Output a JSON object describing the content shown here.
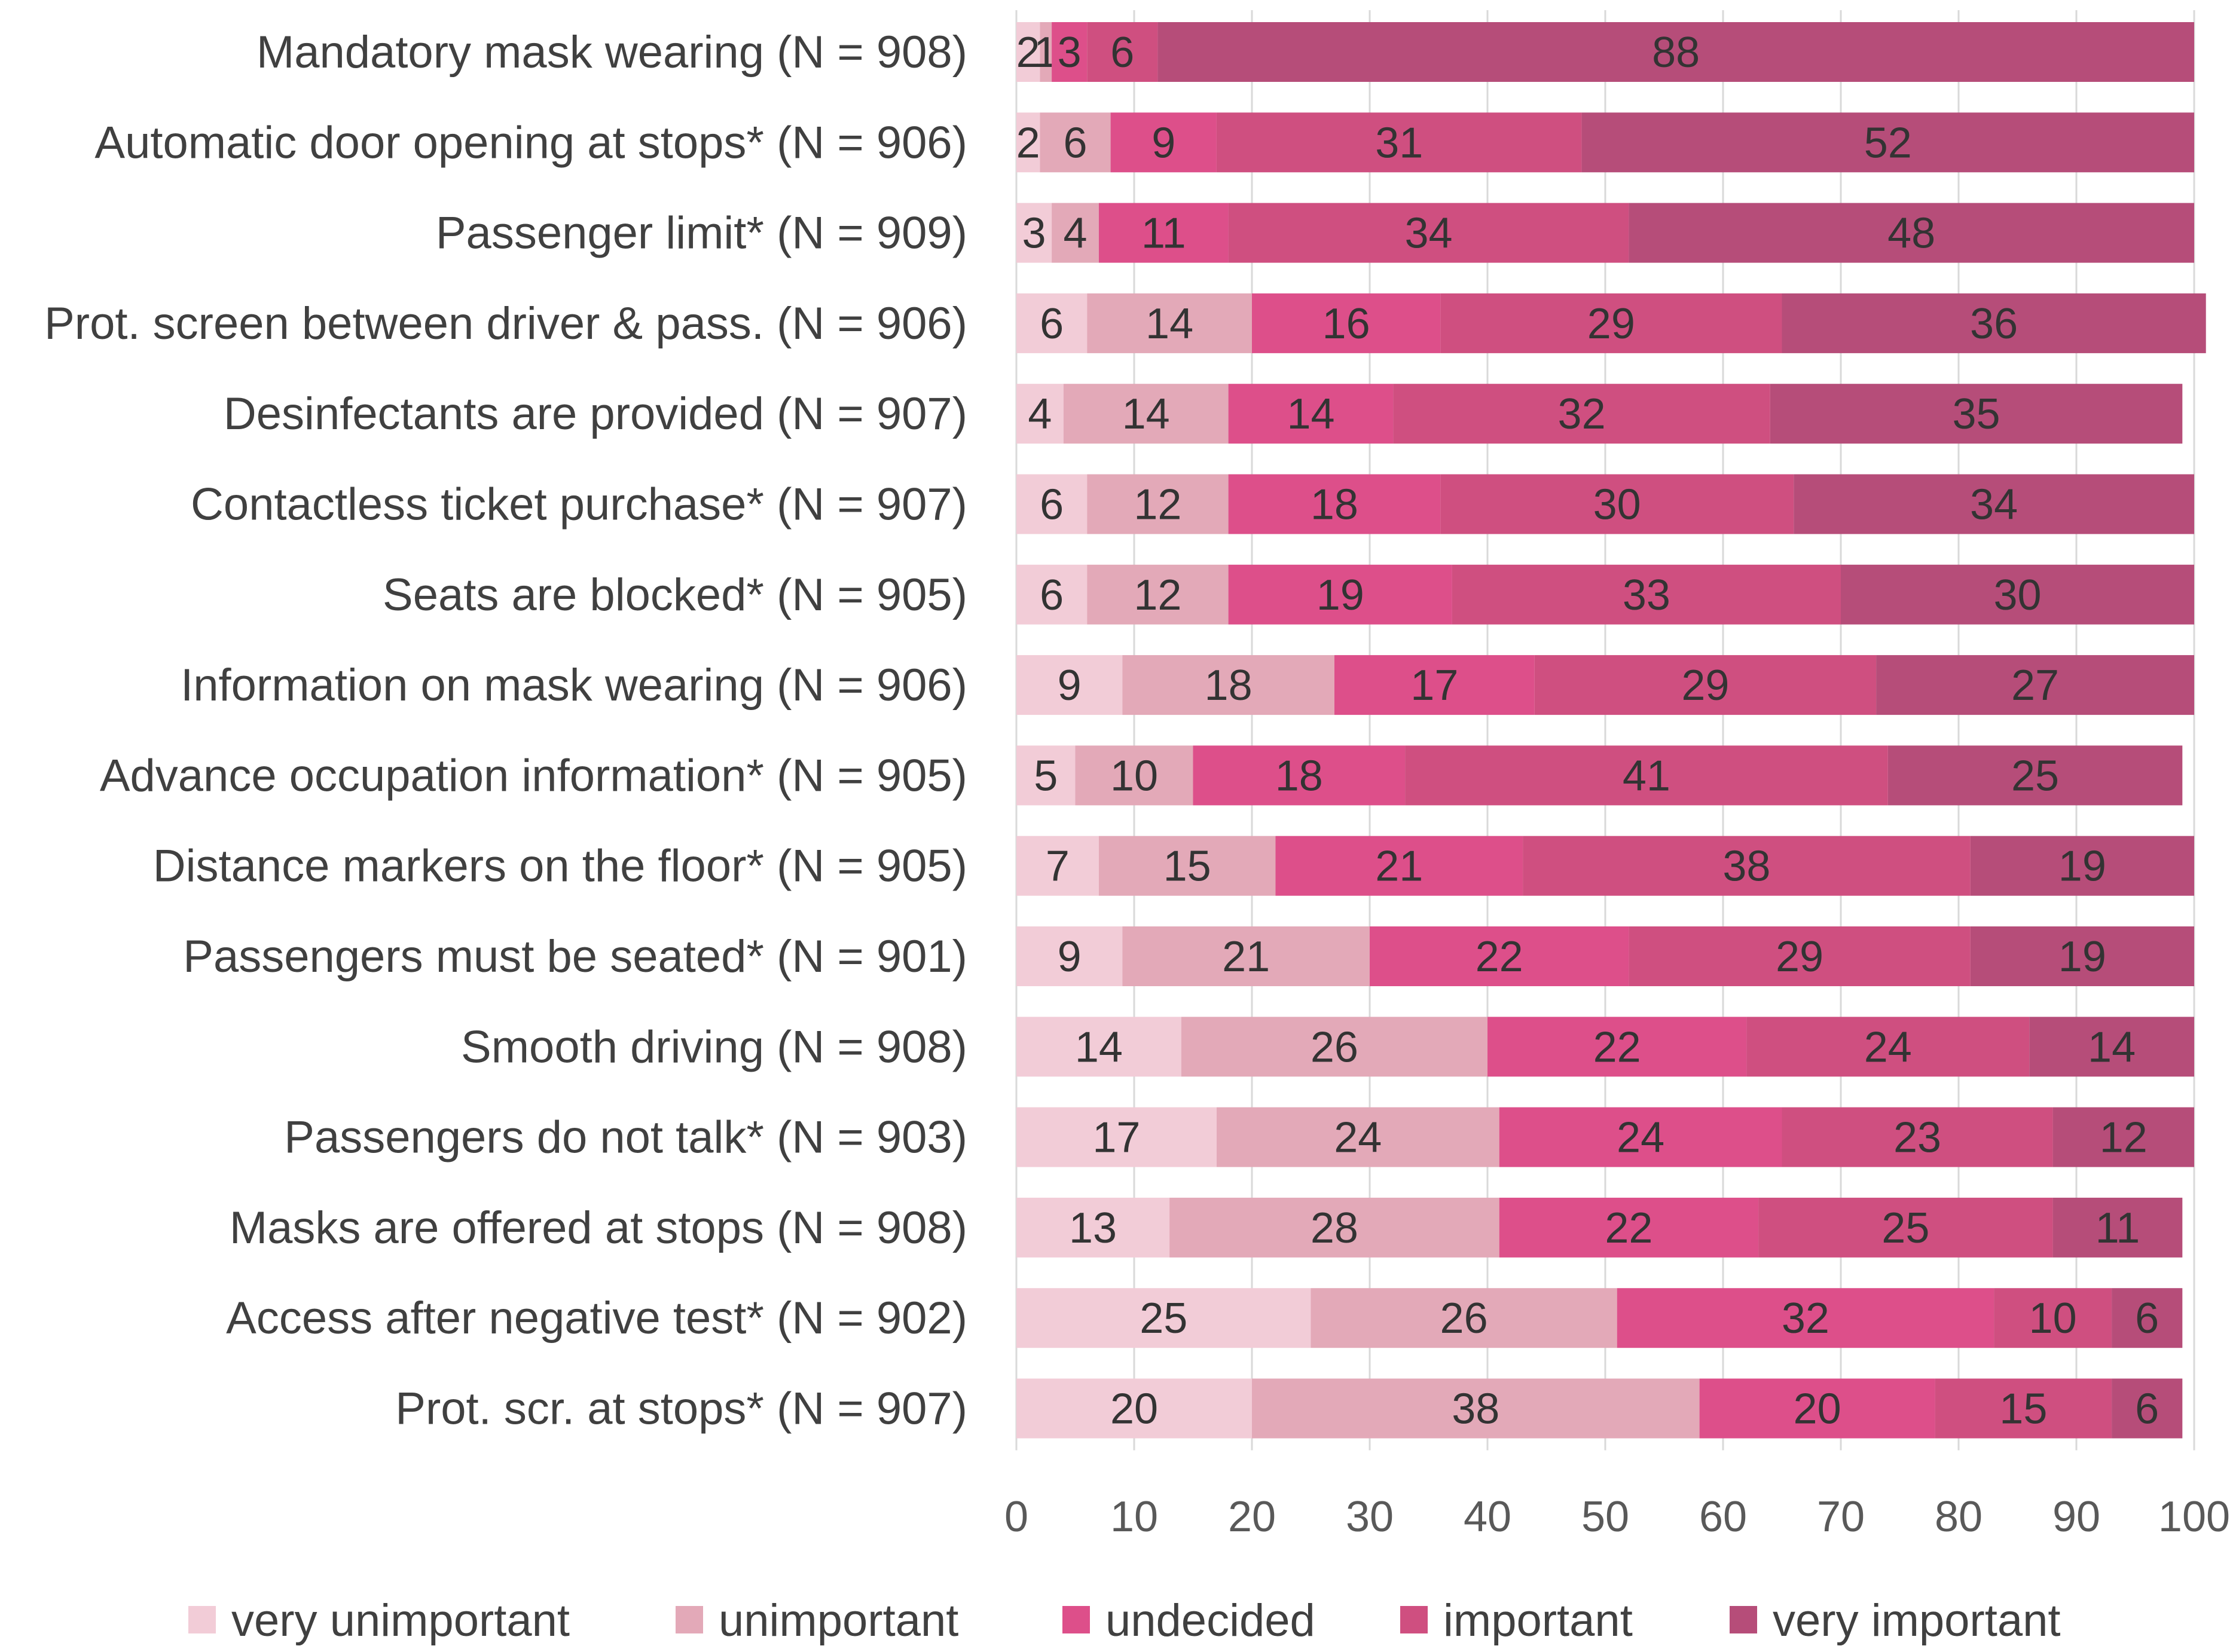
{
  "chart_data": {
    "type": "bar",
    "orientation": "horizontal",
    "stacked": true,
    "title": "",
    "xlabel": "",
    "ylabel": "",
    "xlim": [
      0,
      100
    ],
    "x_ticks": [
      "0",
      "10",
      "20",
      "30",
      "40",
      "50",
      "60",
      "70",
      "80",
      "90",
      "100"
    ],
    "grid": true,
    "legend_position": "bottom",
    "categories": [
      "Mandatory mask wearing (N = 908)",
      "Automatic door opening at stops* (N = 906)",
      "Passenger limit* (N = 909)",
      "Prot. screen between driver & pass. (N = 906)",
      "Desinfectants are provided  (N = 907)",
      "Contactless ticket purchase* (N = 907)",
      "Seats are blocked* (N = 905)",
      "Information on mask wearing (N = 906)",
      "Advance occupation information* (N = 905)",
      "Distance markers on the floor* (N = 905)",
      "Passengers must be seated* (N = 901)",
      "Smooth driving (N = 908)",
      "Passengers do not talk* (N = 903)",
      "Masks are offered at stops (N = 908)",
      "Access after negative test* (N = 902)",
      "Prot. scr. at stops* (N = 907)"
    ],
    "series": [
      {
        "name": "very unimportant",
        "color": "#f2ccd7",
        "values": [
          2,
          2,
          3,
          6,
          4,
          6,
          6,
          9,
          5,
          7,
          9,
          14,
          17,
          13,
          25,
          20
        ]
      },
      {
        "name": "unimportant",
        "color": "#e3a9b8",
        "values": [
          1,
          6,
          4,
          14,
          14,
          12,
          12,
          18,
          10,
          15,
          21,
          26,
          24,
          28,
          26,
          38
        ]
      },
      {
        "name": "undecided",
        "color": "#dd4f8a",
        "values": [
          3,
          9,
          11,
          16,
          14,
          18,
          19,
          17,
          18,
          21,
          22,
          22,
          24,
          22,
          32,
          20
        ]
      },
      {
        "name": "important",
        "color": "#cf4f80",
        "values": [
          6,
          31,
          34,
          29,
          32,
          30,
          33,
          29,
          41,
          38,
          29,
          24,
          23,
          25,
          10,
          15
        ]
      },
      {
        "name": "very important",
        "color": "#b64d79",
        "values": [
          88,
          52,
          48,
          36,
          35,
          34,
          30,
          27,
          25,
          19,
          19,
          14,
          12,
          11,
          6,
          6
        ]
      }
    ]
  }
}
